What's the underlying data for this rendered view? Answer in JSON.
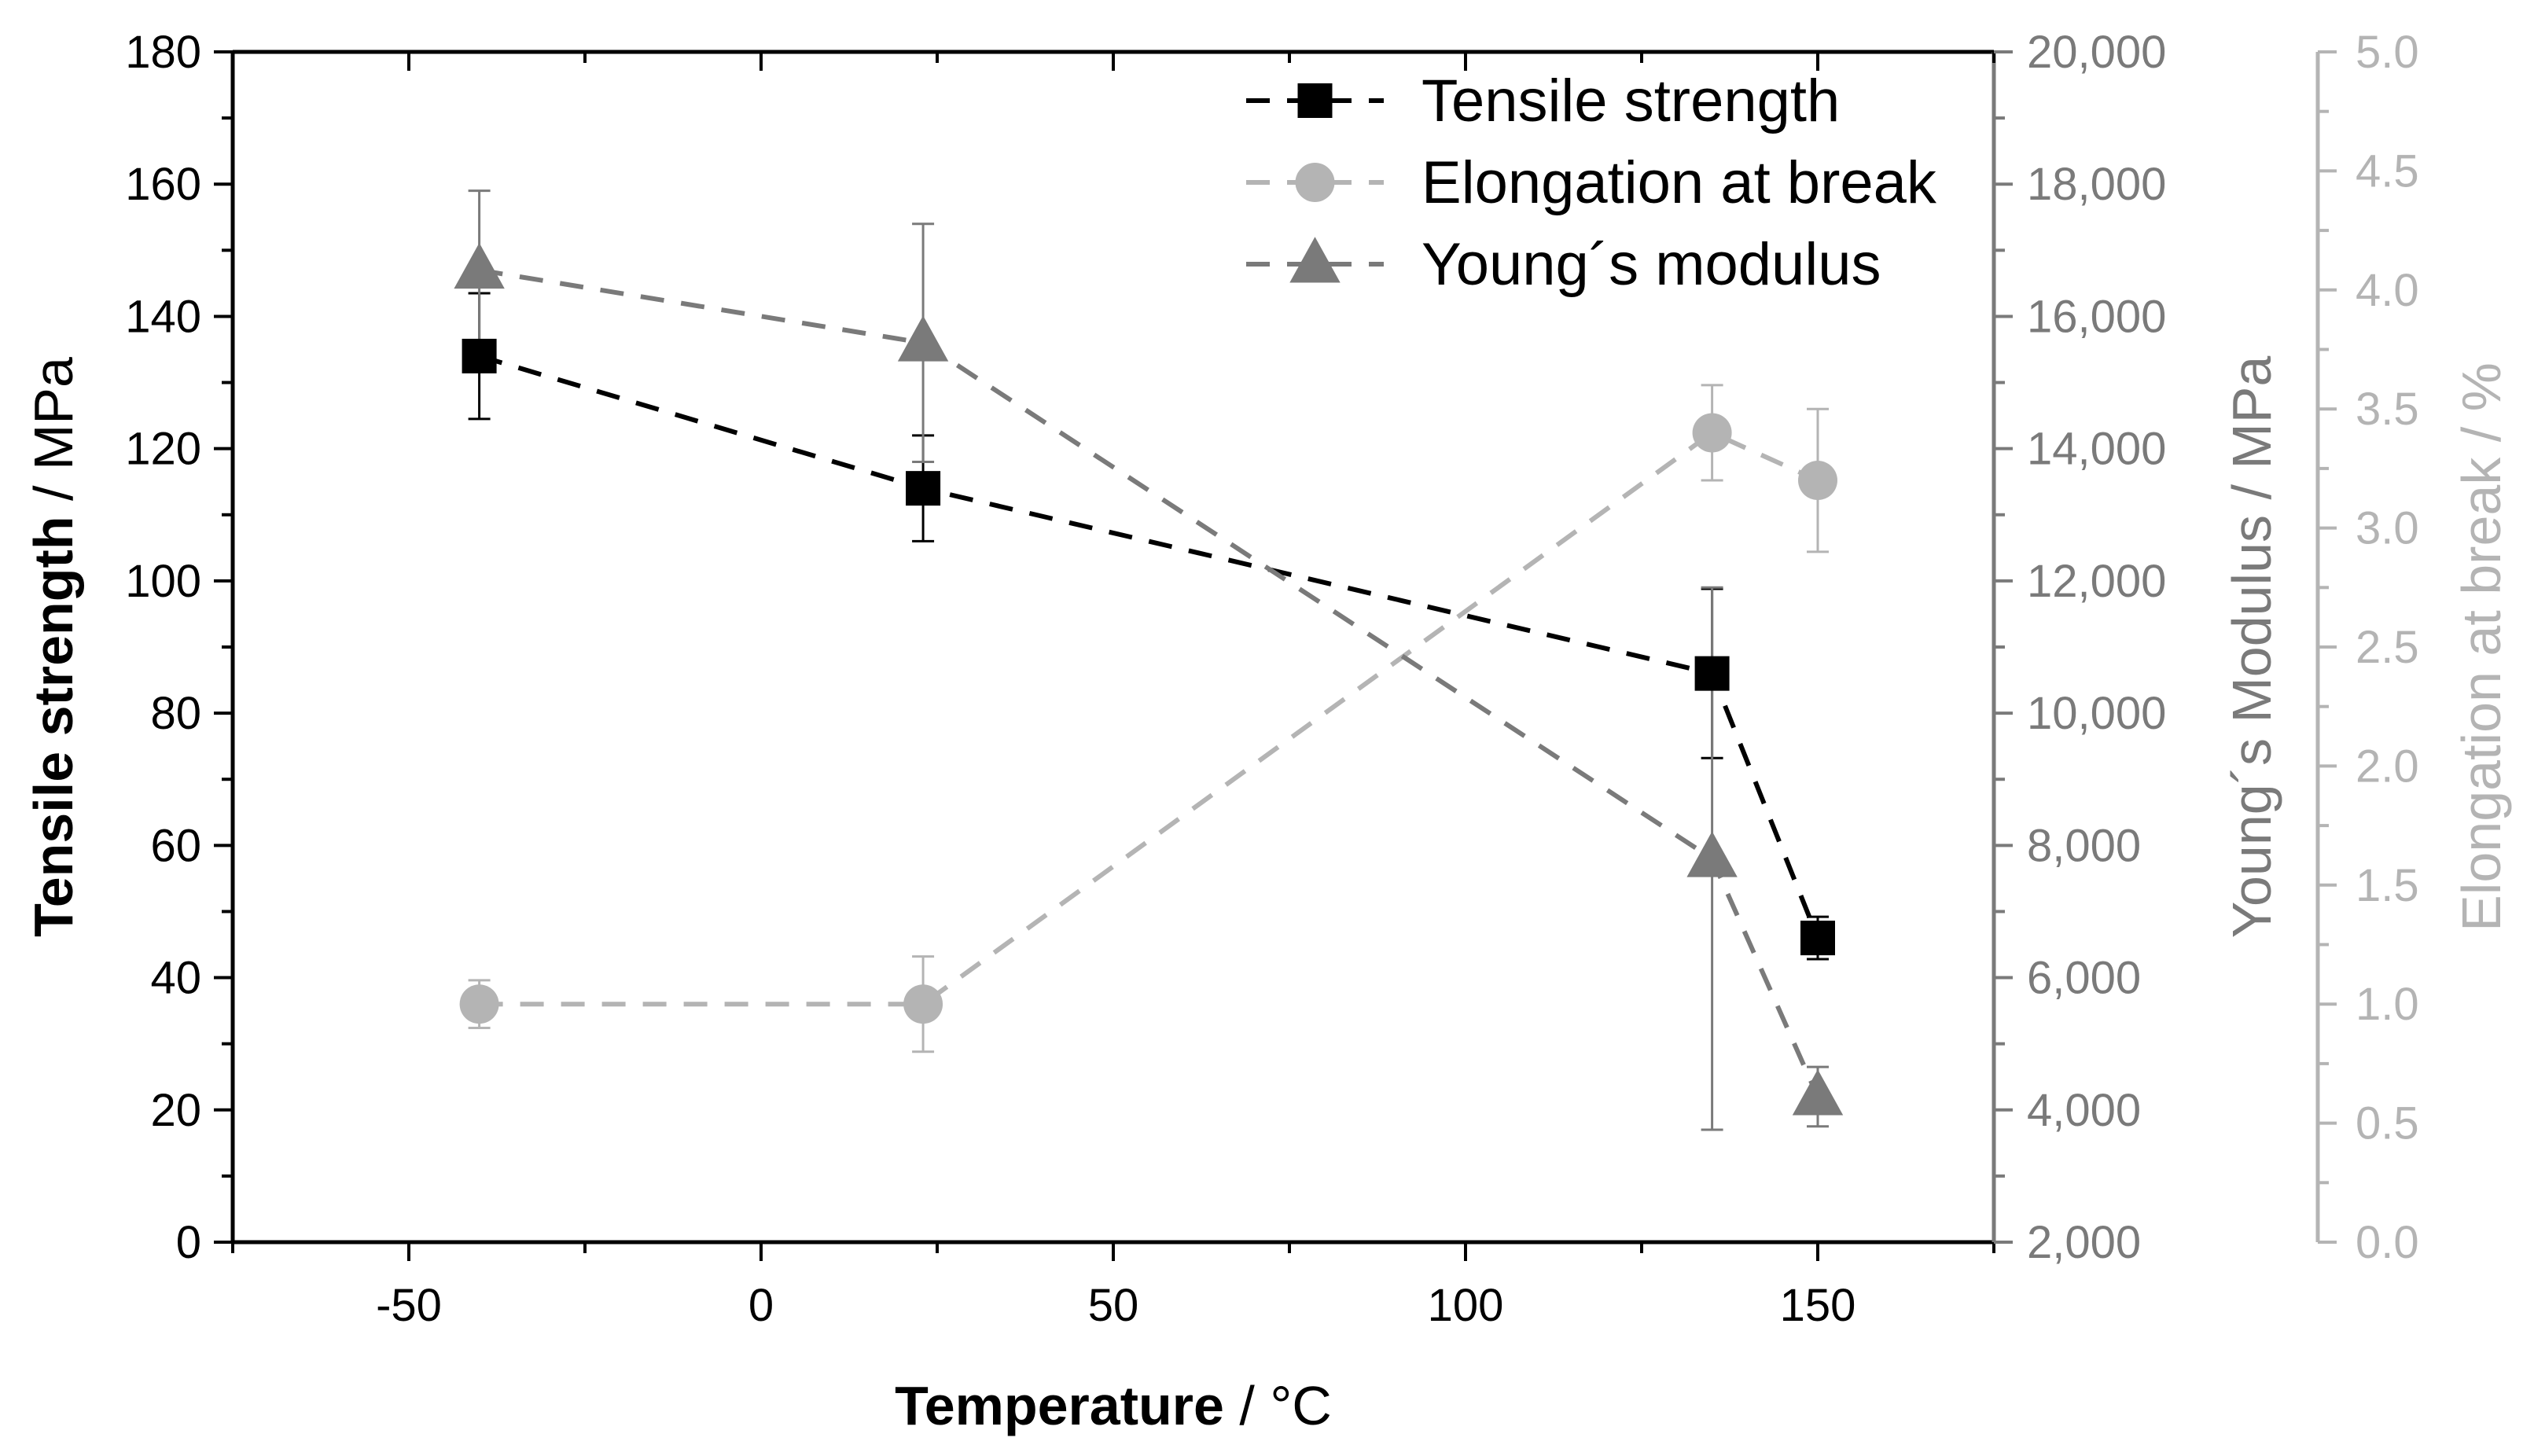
{
  "colors": {
    "tensile": "#000000",
    "modulus": "#7a7a7a",
    "elongation": "#b4b4b4",
    "axis": "#000000"
  },
  "chart_data": {
    "type": "scatter",
    "x": [
      -40,
      23,
      135,
      150
    ],
    "xlim": [
      -75,
      175
    ],
    "xticks": [
      -50,
      0,
      50,
      100,
      150
    ],
    "xlabel_bold": "Temperature",
    "xlabel_rest": " / °C",
    "axes": {
      "left": {
        "label_bold": "Tensile strength",
        "label_rest": " / MPa",
        "lim": [
          0,
          180
        ],
        "ticks": [
          0,
          20,
          40,
          60,
          80,
          100,
          120,
          140,
          160,
          180
        ],
        "tick_labels": [
          "0",
          "20",
          "40",
          "60",
          "80",
          "100",
          "120",
          "140",
          "160",
          "180"
        ]
      },
      "right1": {
        "label": "Young´s Modulus / MPa",
        "lim": [
          2000,
          20000
        ],
        "ticks": [
          2000,
          4000,
          6000,
          8000,
          10000,
          12000,
          14000,
          16000,
          18000,
          20000
        ],
        "tick_labels": [
          "2,000",
          "4,000",
          "6,000",
          "8,000",
          "10,000",
          "12,000",
          "14,000",
          "16,000",
          "18,000",
          "20,000"
        ]
      },
      "right2": {
        "label": "Elongation at break / %",
        "lim": [
          0,
          5
        ],
        "ticks": [
          0,
          0.5,
          1,
          1.5,
          2,
          2.5,
          3,
          3.5,
          4,
          4.5,
          5
        ],
        "tick_labels": [
          "0.0",
          "0.5",
          "1.0",
          "1.5",
          "2.0",
          "2.5",
          "3.0",
          "3.5",
          "4.0",
          "4.5",
          "5.0"
        ]
      }
    },
    "series": [
      {
        "name": "Tensile strength",
        "axis": "left",
        "marker": "square",
        "color": "#000000",
        "x": [
          -40,
          23,
          135,
          150
        ],
        "y": [
          134,
          114,
          86,
          46
        ],
        "err": [
          9.5,
          8,
          12.8,
          3.2
        ]
      },
      {
        "name": "Elongation at break",
        "axis": "right2",
        "marker": "circle",
        "color": "#b4b4b4",
        "x": [
          -40,
          23,
          135,
          150
        ],
        "y": [
          1.0,
          1.0,
          3.4,
          3.2
        ],
        "err": [
          0.1,
          0.2,
          0.2,
          0.3
        ]
      },
      {
        "name": "Young´s modulus",
        "axis": "right1",
        "marker": "triangle",
        "color": "#7a7a7a",
        "x": [
          -40,
          23,
          135,
          150
        ],
        "y": [
          16700,
          15600,
          7800,
          4200
        ],
        "err": [
          1200,
          1800,
          4100,
          450
        ]
      }
    ],
    "legend": "top-right-inside",
    "grid": false
  }
}
